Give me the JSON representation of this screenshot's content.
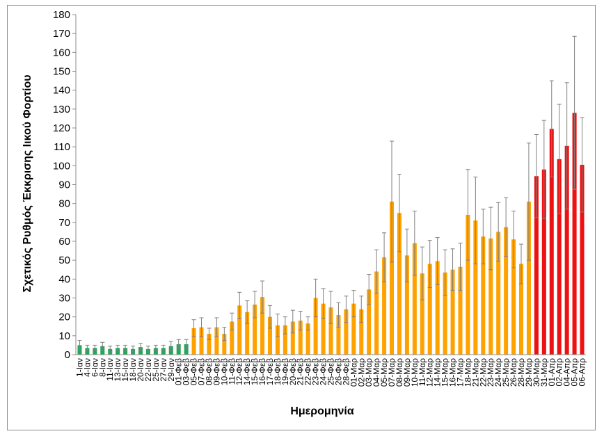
{
  "chart_data": {
    "type": "bar",
    "title": "",
    "xlabel": "Ημερομηνία",
    "ylabel": "Σχετικός Ρυθμός Έκκρισης Ιικού Φορτίου",
    "ylim": [
      0,
      180
    ],
    "ytick_step": 10,
    "grid": false,
    "colors": {
      "green": "#1faa59",
      "orange": "#ffa200",
      "red": "#ee1111",
      "error": "#7f7f7f"
    },
    "series": [
      {
        "categories": [
          "1-Ιαν",
          "4-Ιαν",
          "6-Ιαν",
          "8-Ιαν",
          "11-Ιαν",
          "13-Ιαν",
          "15-Ιαν",
          "18-Ιαν",
          "20-Ιαν",
          "22-Ιαν",
          "25-Ιαν",
          "27-Ιαν",
          "29-Ιαν",
          "01-Φεβ",
          "03-Φεβ",
          "05-Φεβ",
          "07-Φεβ",
          "08-Φεβ",
          "09-Φεβ",
          "10-Φεβ",
          "11-Φεβ",
          "12-Φεβ",
          "14-Φεβ",
          "15-Φεβ",
          "16-Φεβ",
          "17-Φεβ",
          "18-Φεβ",
          "19-Φεβ",
          "20-Φεβ",
          "21-Φεβ",
          "22-Φεβ",
          "23-Φεβ",
          "24-Φεβ",
          "25-Φεβ",
          "26-Φεβ",
          "28-Φεβ",
          "01-Μαρ",
          "02-Μαρ",
          "03-Μαρ",
          "04-Μαρ",
          "05-Μαρ",
          "07-Μαρ",
          "08-Μαρ",
          "09-Μαρ",
          "10-Μαρ",
          "11-Μαρ",
          "12-Μαρ",
          "14-Μαρ",
          "15-Μαρ",
          "16-Μαρ",
          "17-Μαρ",
          "18-Μαρ",
          "21-Μαρ",
          "22-Μαρ",
          "23-Μαρ",
          "24-Μαρ",
          "25-Μαρ",
          "26-Μαρ",
          "28-Μαρ",
          "29-Μαρ",
          "30-Μαρ",
          "31-Μαρ",
          "01-Απρ",
          "02-Απρ",
          "04-Απρ",
          "05-Απρ",
          "06-Απρ"
        ],
        "values": [
          5,
          3.5,
          3.5,
          4.5,
          3,
          3.5,
          3.5,
          3,
          4,
          3,
          3.5,
          3.5,
          4.5,
          5.5,
          5.5,
          14,
          14.5,
          11,
          14.5,
          11,
          17.5,
          26,
          22.5,
          26.5,
          30.5,
          20,
          15.5,
          15.5,
          17.5,
          18,
          16.5,
          30,
          27,
          25,
          21,
          24,
          27,
          24,
          34.5,
          44,
          51.5,
          81,
          75,
          52.5,
          59,
          43,
          48,
          49.5,
          43.5,
          45,
          46.5,
          74,
          71,
          62.5,
          61.5,
          65,
          67.5,
          61,
          48,
          81,
          94.5,
          98,
          119.5,
          103.5,
          110.5,
          128,
          100.5
        ],
        "err": [
          2.5,
          1.5,
          1.5,
          2,
          1.5,
          1.5,
          1.5,
          1.5,
          2,
          1.5,
          1.5,
          1.5,
          2.5,
          2.5,
          2.5,
          4.5,
          5,
          3,
          5,
          3.5,
          4.5,
          7,
          6,
          7,
          8.5,
          6,
          6,
          4.5,
          6,
          5,
          3.5,
          10,
          8,
          8.5,
          6.5,
          7,
          7,
          7,
          8,
          11.5,
          13,
          32,
          20.5,
          14,
          17,
          14,
          12.5,
          12.5,
          12,
          11,
          12.5,
          24,
          23,
          14.5,
          16.5,
          15.5,
          15.5,
          15,
          10.5,
          31,
          22,
          26,
          25.5,
          29,
          33.5,
          40.5,
          25
        ],
        "color_groups": [
          "green",
          "green",
          "green",
          "green",
          "green",
          "green",
          "green",
          "green",
          "green",
          "green",
          "green",
          "green",
          "green",
          "green",
          "green",
          "orange",
          "orange",
          "orange",
          "orange",
          "orange",
          "orange",
          "orange",
          "orange",
          "orange",
          "orange",
          "orange",
          "orange",
          "orange",
          "orange",
          "orange",
          "orange",
          "orange",
          "orange",
          "orange",
          "orange",
          "orange",
          "orange",
          "orange",
          "orange",
          "orange",
          "orange",
          "orange",
          "orange",
          "orange",
          "orange",
          "orange",
          "orange",
          "orange",
          "orange",
          "orange",
          "orange",
          "orange",
          "orange",
          "orange",
          "orange",
          "orange",
          "orange",
          "orange",
          "orange",
          "orange",
          "red",
          "red",
          "red",
          "red",
          "red",
          "red",
          "red"
        ]
      }
    ]
  }
}
